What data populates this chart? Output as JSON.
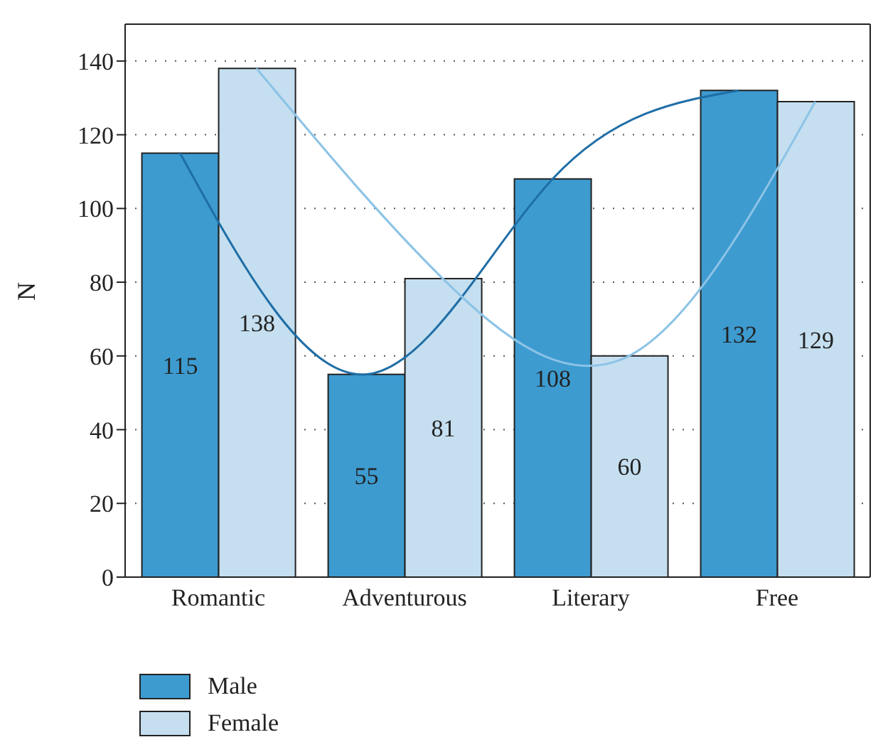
{
  "chart_data": {
    "type": "bar",
    "ylabel": "N",
    "categories": [
      "Romantic",
      "Adventurous",
      "Literary",
      "Free"
    ],
    "series": [
      {
        "name": "Male",
        "color": "#3d9bd0",
        "values": [
          115,
          55,
          108,
          132
        ],
        "value_labels": [
          "115",
          "55",
          "108",
          "132"
        ]
      },
      {
        "name": "Female",
        "color": "#c5dff0",
        "values": [
          138,
          81,
          60,
          129
        ],
        "value_labels": [
          "138",
          "81",
          "60",
          "129"
        ]
      },
      {
        "type": "line",
        "color": "#1f6ea6",
        "values": [
          115,
          55,
          108,
          132
        ]
      },
      {
        "type": "line",
        "color": "#8cc3e6",
        "values": [
          138,
          81,
          60,
          129
        ]
      }
    ],
    "ylim": [
      0,
      150
    ],
    "yticks": [
      0,
      20,
      40,
      60,
      80,
      100,
      120,
      140
    ],
    "grid": "y",
    "legend": "bottom left"
  }
}
